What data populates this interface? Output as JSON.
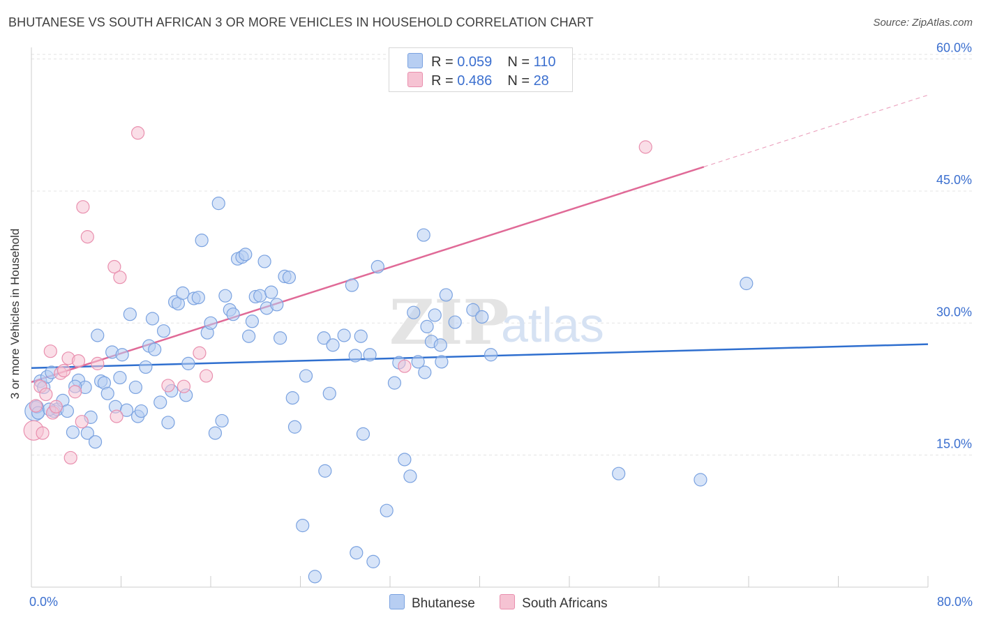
{
  "title": "BHUTANESE VS SOUTH AFRICAN 3 OR MORE VEHICLES IN HOUSEHOLD CORRELATION CHART",
  "source": "Source: ZipAtlas.com",
  "watermark": {
    "zip": "ZIP",
    "atlas": "atlas"
  },
  "colors": {
    "blue_fill": "#b7cef2",
    "blue_stroke": "#7aa2e0",
    "blue_line": "#2f6fcf",
    "pink_fill": "#f6c3d3",
    "pink_stroke": "#e98fae",
    "pink_line": "#e06a97",
    "grid": "#e3e3e3",
    "tick_label": "#3b6fcf"
  },
  "legend": {
    "rows": [
      {
        "r_label": "R = ",
        "r_value": "0.059",
        "n_label": "N = ",
        "n_value": "110"
      },
      {
        "r_label": "R = ",
        "r_value": "0.486",
        "n_label": "N = ",
        "n_value": "28"
      }
    ]
  },
  "chart_data": {
    "type": "scatter",
    "title": "BHUTANESE VS SOUTH AFRICAN 3 OR MORE VEHICLES IN HOUSEHOLD CORRELATION CHART",
    "xlabel": "",
    "ylabel": "3 or more Vehicles in Household",
    "xlim": [
      0,
      80
    ],
    "ylim": [
      0,
      61
    ],
    "x_tick_labels": [
      "0.0%",
      "80.0%"
    ],
    "y_ticks": [
      15,
      30,
      45,
      60
    ],
    "y_tick_labels": [
      "15.0%",
      "30.0%",
      "45.0%",
      "60.0%"
    ],
    "grid": true,
    "legend_position": "top-center",
    "series": [
      {
        "name": "Bhutanese",
        "trend": {
          "x": [
            0,
            80
          ],
          "y": [
            24.9,
            27.6
          ],
          "dashed_from_x": null
        },
        "points": [
          [
            0.3,
            20.0,
            14
          ],
          [
            0.5,
            20.5,
            9
          ],
          [
            0.6,
            19.8,
            9
          ],
          [
            0.8,
            23.4,
            9
          ],
          [
            1.1,
            22.7,
            9
          ],
          [
            1.4,
            23.9,
            9
          ],
          [
            1.8,
            24.4,
            9
          ],
          [
            2.0,
            20.0,
            9
          ],
          [
            2.3,
            20.2,
            9
          ],
          [
            2.8,
            21.2,
            9
          ],
          [
            3.2,
            20.0,
            9
          ],
          [
            3.7,
            17.6,
            9
          ],
          [
            4.2,
            23.5,
            9
          ],
          [
            4.8,
            22.7,
            9
          ],
          [
            5.0,
            17.5,
            9
          ],
          [
            5.3,
            19.3,
            9
          ],
          [
            5.7,
            16.5,
            9
          ],
          [
            5.9,
            28.6,
            9
          ],
          [
            6.2,
            23.4,
            9
          ],
          [
            6.5,
            23.2,
            9
          ],
          [
            6.8,
            22.0,
            9
          ],
          [
            7.2,
            26.7,
            9
          ],
          [
            7.5,
            20.5,
            9
          ],
          [
            7.9,
            23.8,
            9
          ],
          [
            8.1,
            26.4,
            9
          ],
          [
            8.5,
            20.1,
            9
          ],
          [
            8.8,
            31.0,
            9
          ],
          [
            9.3,
            22.7,
            9
          ],
          [
            9.5,
            19.4,
            9
          ],
          [
            9.8,
            20.0,
            9
          ],
          [
            10.2,
            25.0,
            9
          ],
          [
            10.5,
            27.4,
            9
          ],
          [
            10.8,
            30.5,
            9
          ],
          [
            11.0,
            27.0,
            9
          ],
          [
            11.5,
            21.0,
            9
          ],
          [
            11.8,
            29.1,
            9
          ],
          [
            12.2,
            18.7,
            9
          ],
          [
            12.5,
            22.3,
            9
          ],
          [
            12.8,
            32.4,
            9
          ],
          [
            13.1,
            32.2,
            9
          ],
          [
            13.5,
            33.4,
            9
          ],
          [
            13.8,
            21.8,
            9
          ],
          [
            14.0,
            25.4,
            9
          ],
          [
            14.5,
            32.8,
            9
          ],
          [
            14.9,
            32.9,
            9
          ],
          [
            15.2,
            39.4,
            9
          ],
          [
            15.7,
            28.9,
            9
          ],
          [
            16.0,
            30.0,
            9
          ],
          [
            16.4,
            17.5,
            9
          ],
          [
            16.7,
            43.6,
            9
          ],
          [
            17.0,
            18.9,
            9
          ],
          [
            17.3,
            33.1,
            9
          ],
          [
            17.7,
            31.5,
            9
          ],
          [
            18.0,
            31.0,
            9
          ],
          [
            18.4,
            37.3,
            9
          ],
          [
            18.8,
            37.5,
            9
          ],
          [
            19.1,
            37.8,
            9
          ],
          [
            19.4,
            28.5,
            9
          ],
          [
            19.7,
            30.2,
            9
          ],
          [
            20.0,
            33.0,
            9
          ],
          [
            20.4,
            33.1,
            9
          ],
          [
            20.8,
            37.0,
            9
          ],
          [
            21.0,
            31.7,
            9
          ],
          [
            21.4,
            33.5,
            9
          ],
          [
            21.9,
            32.1,
            9
          ],
          [
            22.2,
            28.3,
            9
          ],
          [
            22.6,
            35.3,
            9
          ],
          [
            23.0,
            35.2,
            9
          ],
          [
            23.3,
            21.5,
            9
          ],
          [
            23.5,
            18.2,
            9
          ],
          [
            24.2,
            7.0,
            9
          ],
          [
            24.5,
            24.0,
            9
          ],
          [
            25.3,
            1.2,
            9
          ],
          [
            26.2,
            13.2,
            9
          ],
          [
            26.1,
            28.3,
            9
          ],
          [
            26.6,
            22.0,
            9
          ],
          [
            26.9,
            27.5,
            9
          ],
          [
            27.9,
            28.6,
            9
          ],
          [
            28.6,
            34.3,
            9
          ],
          [
            29.0,
            3.9,
            9
          ],
          [
            28.9,
            26.3,
            9
          ],
          [
            29.4,
            28.5,
            9
          ],
          [
            29.6,
            17.4,
            9
          ],
          [
            30.2,
            26.4,
            9
          ],
          [
            30.5,
            2.9,
            9
          ],
          [
            30.9,
            36.4,
            9
          ],
          [
            31.7,
            8.7,
            9
          ],
          [
            32.4,
            23.2,
            9
          ],
          [
            32.8,
            25.5,
            9
          ],
          [
            33.3,
            14.5,
            9
          ],
          [
            33.8,
            12.6,
            9
          ],
          [
            34.1,
            31.2,
            9
          ],
          [
            34.5,
            25.6,
            9
          ],
          [
            35.0,
            40.0,
            9
          ],
          [
            35.1,
            24.4,
            9
          ],
          [
            35.3,
            29.6,
            9
          ],
          [
            35.7,
            27.9,
            9
          ],
          [
            36.0,
            30.9,
            9
          ],
          [
            36.5,
            27.5,
            9
          ],
          [
            36.6,
            25.6,
            9
          ],
          [
            37.0,
            33.2,
            9
          ],
          [
            37.8,
            30.1,
            9
          ],
          [
            39.4,
            31.5,
            9
          ],
          [
            40.2,
            30.7,
            9
          ],
          [
            41.0,
            26.4,
            9
          ],
          [
            52.4,
            12.9,
            9
          ],
          [
            59.7,
            12.2,
            9
          ],
          [
            63.8,
            34.5,
            9
          ],
          [
            1.6,
            20.2,
            9
          ],
          [
            3.9,
            22.8,
            9
          ]
        ]
      },
      {
        "name": "South Africans",
        "trend": {
          "x": [
            0,
            80
          ],
          "y": [
            23.3,
            55.9
          ],
          "dashed_from_x": 60.0
        },
        "points": [
          [
            0.2,
            17.8,
            14
          ],
          [
            0.4,
            20.6,
            9
          ],
          [
            0.8,
            22.8,
            9
          ],
          [
            1.0,
            17.5,
            9
          ],
          [
            1.3,
            21.9,
            9
          ],
          [
            1.7,
            26.8,
            9
          ],
          [
            1.9,
            19.8,
            9
          ],
          [
            2.2,
            20.5,
            9
          ],
          [
            2.6,
            24.3,
            9
          ],
          [
            2.9,
            24.6,
            9
          ],
          [
            3.3,
            26.0,
            9
          ],
          [
            3.5,
            14.7,
            9
          ],
          [
            3.9,
            22.2,
            9
          ],
          [
            4.2,
            25.7,
            9
          ],
          [
            4.5,
            18.8,
            9
          ],
          [
            4.6,
            43.2,
            9
          ],
          [
            5.0,
            39.8,
            9
          ],
          [
            5.9,
            25.4,
            9
          ],
          [
            7.4,
            36.4,
            9
          ],
          [
            7.6,
            19.4,
            9
          ],
          [
            7.9,
            35.2,
            9
          ],
          [
            9.5,
            51.6,
            9
          ],
          [
            12.2,
            22.9,
            9
          ],
          [
            13.6,
            22.8,
            9
          ],
          [
            15.0,
            26.6,
            9
          ],
          [
            15.6,
            24.0,
            9
          ],
          [
            33.3,
            25.1,
            9
          ],
          [
            54.8,
            50.0,
            9
          ]
        ]
      }
    ]
  },
  "bottom_legend": {
    "items": [
      {
        "label": "Bhutanese"
      },
      {
        "label": "South Africans"
      }
    ]
  }
}
